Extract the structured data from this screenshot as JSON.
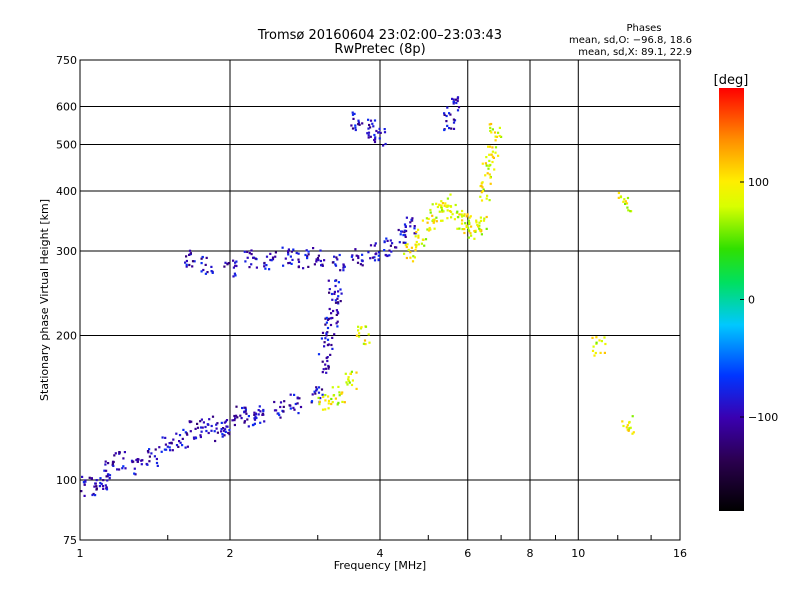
{
  "chart_data": {
    "type": "scatter",
    "title": "Tromsø 20160604 23:02:00–23:03:43",
    "subtitle": "RwPretec (8p)",
    "xlabel": "Frequency [MHz]",
    "ylabel": "Stationary phase Virtual Height [km]",
    "x_scale": "log2",
    "y_scale": "log",
    "xlim": [
      1,
      16
    ],
    "ylim": [
      75,
      750
    ],
    "grid": true,
    "x_ticks": [
      "1",
      "2",
      "4",
      "6",
      "8",
      "10",
      "16"
    ],
    "x_tick_values": [
      1,
      2,
      4,
      6,
      8,
      10,
      16
    ],
    "y_ticks": [
      "75",
      "100",
      "200",
      "300",
      "400",
      "500",
      "600",
      "750"
    ],
    "y_tick_values": [
      75,
      100,
      200,
      300,
      400,
      500,
      600,
      750
    ],
    "stats": {
      "heading": "Phases",
      "line1": "mean, sd,O: −96.8, 18.6",
      "line2": "mean, sd,X:  89.1, 22.9"
    },
    "colorbar": {
      "label": "[deg]",
      "range": [
        -180,
        180
      ],
      "ticks": [
        "100",
        "0",
        "−100"
      ],
      "tick_values": [
        100,
        0,
        -100
      ]
    },
    "series": [
      {
        "mode": "O",
        "phase_mean_deg": -96.8,
        "trace": [
          [
            1.0,
            99
          ],
          [
            1.05,
            97
          ],
          [
            1.1,
            98
          ],
          [
            1.15,
            105
          ],
          [
            1.2,
            110
          ],
          [
            1.3,
            107
          ],
          [
            1.4,
            112
          ],
          [
            1.5,
            118
          ],
          [
            1.6,
            122
          ],
          [
            1.7,
            127
          ],
          [
            1.8,
            130
          ],
          [
            1.9,
            126
          ],
          [
            2.0,
            129
          ],
          [
            2.1,
            136
          ],
          [
            2.2,
            133
          ],
          [
            2.3,
            137
          ],
          [
            2.5,
            140
          ],
          [
            2.7,
            144
          ],
          [
            3.0,
            150
          ],
          [
            1.65,
            288
          ],
          [
            1.8,
            280
          ],
          [
            2.0,
            275
          ],
          [
            2.2,
            288
          ],
          [
            2.4,
            286
          ],
          [
            2.6,
            292
          ],
          [
            2.8,
            288
          ],
          [
            3.0,
            292
          ],
          [
            3.3,
            284
          ],
          [
            3.6,
            292
          ],
          [
            3.9,
            298
          ],
          [
            4.2,
            305
          ],
          [
            4.4,
            318
          ],
          [
            4.6,
            338
          ],
          [
            3.1,
            175
          ],
          [
            3.15,
            195
          ],
          [
            3.2,
            210
          ],
          [
            3.25,
            230
          ],
          [
            3.25,
            250
          ],
          [
            3.6,
            560
          ],
          [
            3.8,
            540
          ],
          [
            4.0,
            520
          ],
          [
            5.5,
            560
          ],
          [
            5.6,
            600
          ]
        ]
      },
      {
        "mode": "X",
        "phase_mean_deg": 89.1,
        "trace": [
          [
            3.1,
            145
          ],
          [
            3.3,
            150
          ],
          [
            3.5,
            162
          ],
          [
            3.7,
            200
          ],
          [
            4.6,
            298
          ],
          [
            4.8,
            318
          ],
          [
            5.0,
            340
          ],
          [
            5.2,
            360
          ],
          [
            5.4,
            378
          ],
          [
            5.6,
            360
          ],
          [
            5.8,
            348
          ],
          [
            6.0,
            342
          ],
          [
            6.2,
            332
          ],
          [
            6.4,
            338
          ],
          [
            6.5,
            400
          ],
          [
            6.6,
            440
          ],
          [
            6.7,
            480
          ],
          [
            6.8,
            530
          ],
          [
            11.0,
            190
          ],
          [
            12.4,
            380
          ],
          [
            12.6,
            130
          ]
        ]
      }
    ]
  }
}
